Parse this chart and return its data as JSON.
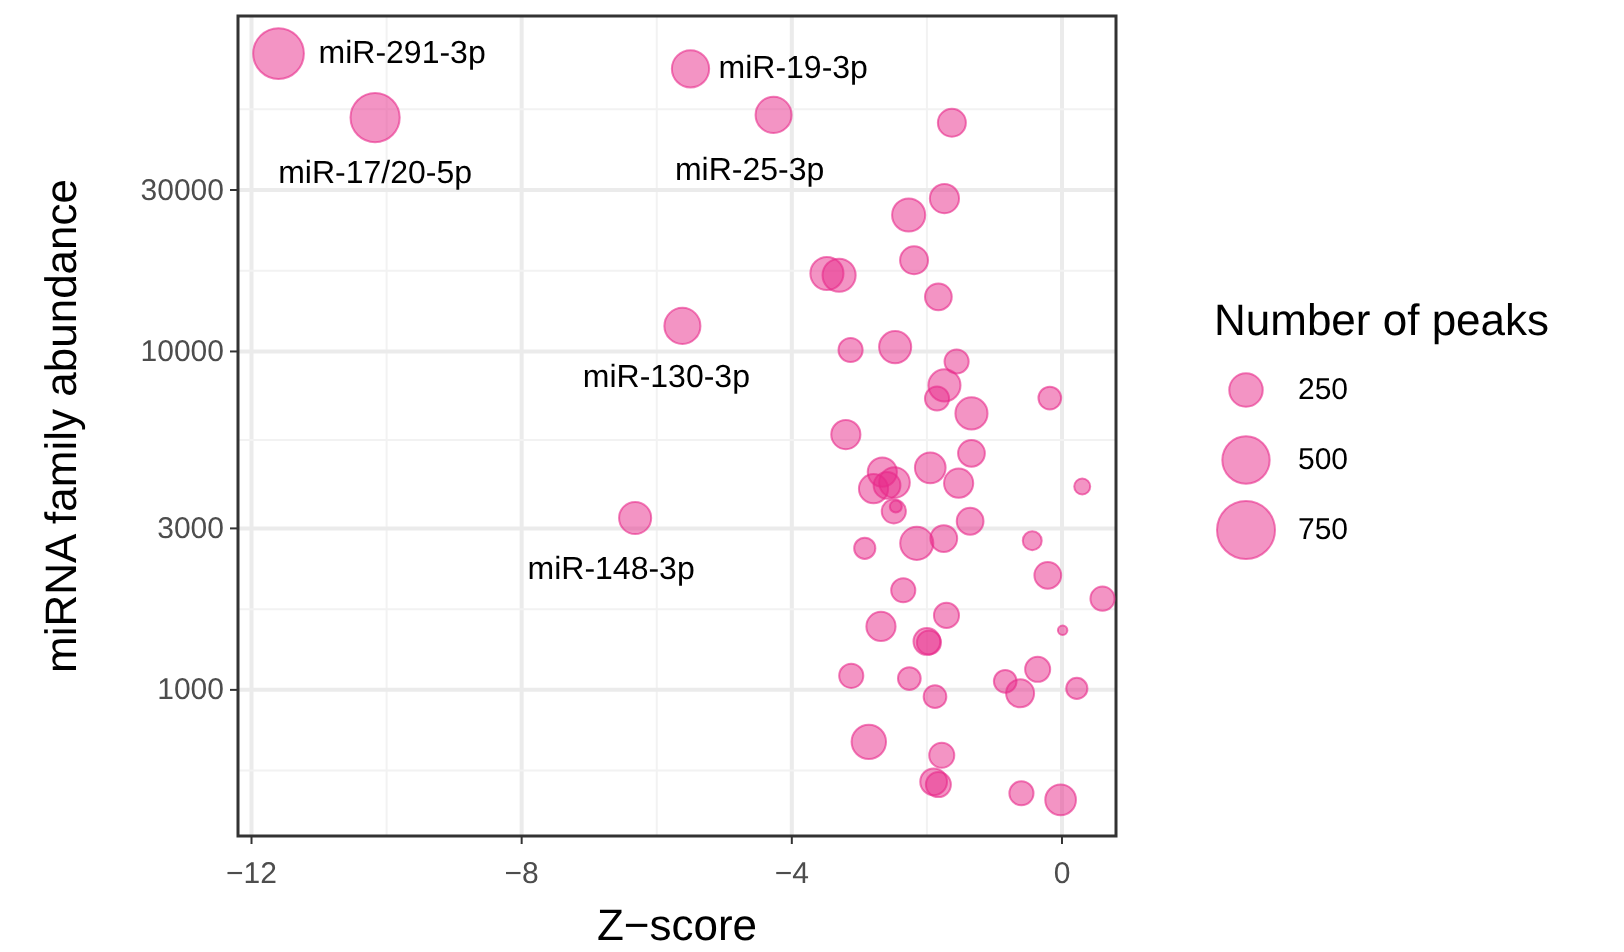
{
  "chart_data": {
    "type": "bubble",
    "xlabel": "Z−score",
    "ylabel": "miRNA family abundance",
    "legend_title": "Number of peaks",
    "grid": true,
    "log": "y",
    "xlim": [
      -12.2,
      0.8
    ],
    "ylim": [
      370,
      98000
    ],
    "xticks": [
      {
        "value": -12,
        "label": "−12"
      },
      {
        "value": -8,
        "label": "−8"
      },
      {
        "value": -4,
        "label": "−4"
      },
      0
    ],
    "yticks": [
      1000,
      3000,
      10000,
      30000
    ],
    "size_legend": [
      250,
      500,
      750
    ],
    "series": [
      {
        "color": "#e7298a",
        "x": [
          -11.6,
          -10.17,
          -5.5,
          -4.27,
          -1.63,
          -1.74,
          -2.27,
          -2.19,
          -3.48,
          -3.3,
          -1.83,
          -5.62,
          -3.13,
          -2.47,
          -1.56,
          -1.74,
          -1.85,
          -1.34,
          -0.18,
          -3.2,
          -1.34,
          -1.95,
          -2.66,
          -2.48,
          -2.79,
          -2.59,
          -1.53,
          0.3,
          -2.49,
          -2.46,
          -6.32,
          -1.36,
          -2.92,
          -2.15,
          -1.75,
          -0.44,
          -2.35,
          -0.21,
          0.6,
          -1.71,
          -2.68,
          0.01,
          -2,
          -1.97,
          -3.12,
          -2.26,
          -1.88,
          -0.84,
          -0.62,
          -0.36,
          0.22,
          -2.86,
          -1.78,
          -1.9,
          -1.83,
          -0.6,
          -0.02
        ],
        "values": [
          75900,
          49100,
          68400,
          50000,
          47400,
          28300,
          25300,
          18600,
          17000,
          16800,
          14500,
          11900,
          10100,
          10300,
          9340,
          7940,
          7260,
          6560,
          7280,
          5680,
          5000,
          4530,
          4400,
          4100,
          3930,
          4020,
          4080,
          3990,
          3370,
          3480,
          3220,
          3150,
          2620,
          2710,
          2800,
          2760,
          1970,
          2180,
          1860,
          1660,
          1540,
          1500,
          1390,
          1380,
          1100,
          1080,
          955,
          1060,
          977,
          1150,
          1010,
          702,
          641,
          535,
          525,
          495,
          473
        ],
        "sizes": [
          574,
          540,
          310,
          290,
          175,
          190,
          245,
          175,
          245,
          245,
          160,
          290,
          130,
          230,
          130,
          230,
          130,
          230,
          115,
          190,
          160,
          210,
          190,
          210,
          190,
          160,
          190,
          57,
          130,
          32,
          230,
          160,
          100,
          245,
          160,
          80,
          130,
          160,
          130,
          140,
          190,
          20,
          160,
          130,
          130,
          115,
          115,
          115,
          175,
          140,
          100,
          265,
          140,
          160,
          140,
          130,
          210
        ]
      }
    ],
    "annotations": [
      {
        "text": "miR-291-3p",
        "x": -11.6,
        "y": 75900
      },
      {
        "text": "miR-17/20-5p",
        "x": -10.17,
        "y": 49100
      },
      {
        "text": "miR-19-3p",
        "x": -5.5,
        "y": 68400
      },
      {
        "text": "miR-25-3p",
        "x": -4.27,
        "y": 50000
      },
      {
        "text": "miR-130-3p",
        "x": -5.62,
        "y": 11900
      },
      {
        "text": "miR-148-3p",
        "x": -6.32,
        "y": 3220
      }
    ]
  }
}
